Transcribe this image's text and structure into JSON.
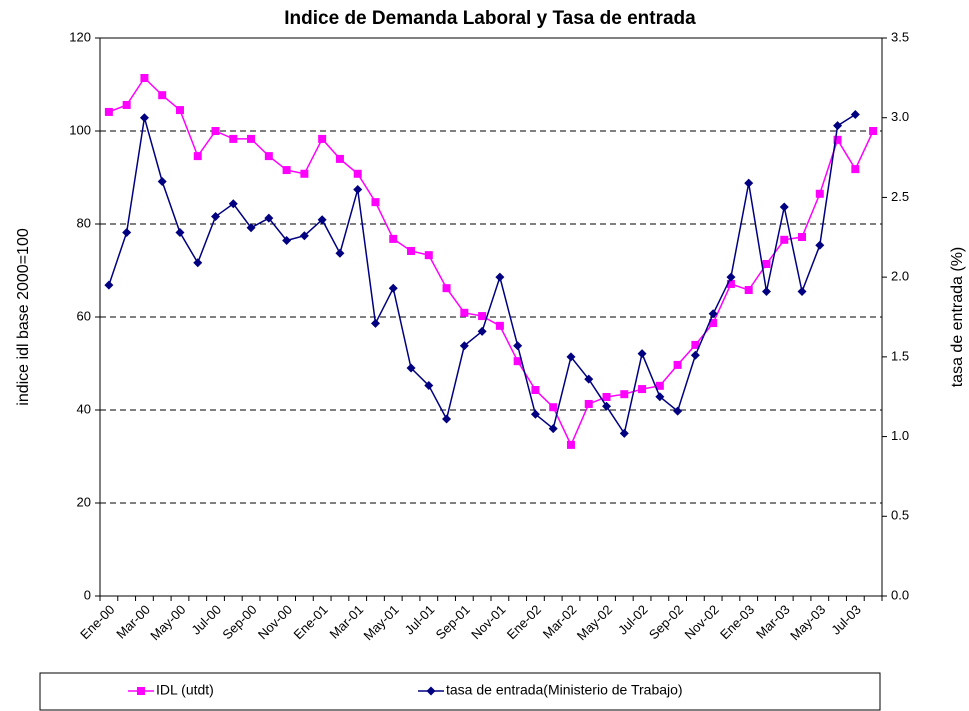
{
  "chart_data": {
    "type": "line",
    "title": "Indice de Demanda Laboral y Tasa de entrada",
    "ylabel": "indice idl base 2000=100",
    "y2label": "tasa de entrada (%)",
    "categories": [
      "Ene-00",
      null,
      "Mar-00",
      null,
      "May-00",
      null,
      "Jul-00",
      null,
      "Sep-00",
      null,
      "Nov-00",
      null,
      "Ene-01",
      null,
      "Mar-01",
      null,
      "May-01",
      null,
      "Jul-01",
      null,
      "Sep-01",
      null,
      "Nov-01",
      null,
      "Ene-02",
      null,
      "Mar-02",
      null,
      "May-02",
      null,
      "Jul-02",
      null,
      "Sep-02",
      null,
      "Nov-02",
      null,
      "Ene-03",
      null,
      "Mar-03",
      null,
      "May-03",
      null,
      "Jul-03",
      null
    ],
    "series": [
      {
        "name": "IDL (utdt)",
        "color": "#ff00ff",
        "marker": "square",
        "axis": "y",
        "values": [
          104.1,
          105.6,
          111.4,
          107.7,
          104.5,
          94.6,
          100,
          98.3,
          98.3,
          94.6,
          91.6,
          90.8,
          98.3,
          94,
          90.8,
          84.7,
          76.8,
          74.2,
          73.3,
          66.2,
          60.9,
          60.2,
          58.1,
          50.5,
          44.3,
          40.6,
          32.5,
          41.3,
          42.8,
          43.4,
          44.5,
          45.2,
          49.7,
          54,
          58.7,
          67.1,
          65.8,
          71.4,
          76.6,
          77.2,
          86.5,
          98.1,
          91.8,
          100
        ]
      },
      {
        "name": "tasa de entrada(Ministerio de Trabajo)",
        "color": "#000080",
        "marker": "diamond",
        "axis": "y2",
        "values": [
          1.95,
          2.28,
          3.0,
          2.6,
          2.28,
          2.09,
          2.38,
          2.46,
          2.31,
          2.37,
          2.23,
          2.26,
          2.36,
          2.15,
          2.55,
          1.71,
          1.93,
          1.43,
          1.32,
          1.11,
          1.57,
          1.66,
          2.0,
          1.57,
          1.14,
          1.05,
          1.5,
          1.36,
          1.19,
          1.02,
          1.52,
          1.25,
          1.16,
          1.51,
          1.77,
          2.0,
          2.59,
          1.91,
          2.44,
          1.91,
          2.2,
          2.95,
          3.02,
          null
        ]
      }
    ],
    "ylim": [
      0,
      120
    ],
    "yticks": [
      0,
      20,
      40,
      60,
      80,
      100,
      120
    ],
    "y2lim": [
      0,
      3.5
    ],
    "y2ticks": [
      {
        "value": 0,
        "label": "0.0"
      },
      {
        "value": 0.5,
        "label": "0.5"
      },
      {
        "value": 1,
        "label": "1.0"
      },
      {
        "value": 1.5,
        "label": "1.5"
      },
      {
        "value": 2,
        "label": "2.0"
      },
      {
        "value": 2.5,
        "label": "2.5"
      },
      {
        "value": 3,
        "label": "3.0"
      },
      {
        "value": 3.5,
        "label": "3.5"
      }
    ],
    "grid": true,
    "legend": "bottom"
  }
}
